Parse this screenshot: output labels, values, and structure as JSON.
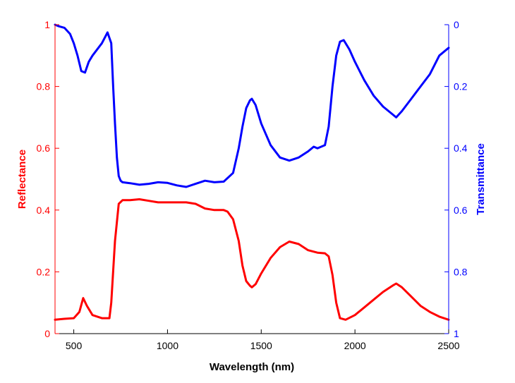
{
  "chart_data": {
    "type": "line",
    "xlabel": "Wavelength (nm)",
    "ylabel_left": "Reflectance",
    "ylabel_right": "Transmittance",
    "xlim": [
      400,
      2500
    ],
    "ylim_left": [
      0,
      1
    ],
    "ylim_right": [
      0,
      1
    ],
    "right_axis_inverted": true,
    "grid": false,
    "x_ticks": [
      500,
      1000,
      1500,
      2000,
      2500
    ],
    "x_tick_labels": [
      "500",
      "1000",
      "1500",
      "2000",
      "2500"
    ],
    "y_left_ticks": [
      0,
      0.2,
      0.4,
      0.6,
      0.8,
      1
    ],
    "y_left_tick_labels": [
      "0",
      "0.2",
      "0.4",
      "0.6",
      "0.8",
      "1"
    ],
    "y_right_ticks": [
      0,
      0.2,
      0.4,
      0.6,
      0.8,
      1
    ],
    "y_right_tick_labels": [
      "0",
      "0.2",
      "0.4",
      "0.6",
      "0.8",
      "1"
    ],
    "colors": {
      "reflectance": "#ff0000",
      "transmittance": "#0000ff",
      "axes": "#000000"
    },
    "series": [
      {
        "axis": "left",
        "color": "#ff0000",
        "x": [
          400,
          450,
          500,
          530,
          550,
          570,
          600,
          650,
          690,
          700,
          720,
          740,
          760,
          800,
          850,
          900,
          950,
          1000,
          1050,
          1100,
          1150,
          1200,
          1250,
          1300,
          1320,
          1350,
          1380,
          1400,
          1420,
          1440,
          1450,
          1470,
          1500,
          1550,
          1600,
          1650,
          1700,
          1750,
          1800,
          1840,
          1860,
          1880,
          1900,
          1920,
          1950,
          2000,
          2050,
          2100,
          2150,
          2200,
          2220,
          2250,
          2300,
          2350,
          2400,
          2450,
          2500
        ],
        "y": [
          0.045,
          0.048,
          0.05,
          0.07,
          0.115,
          0.09,
          0.06,
          0.05,
          0.05,
          0.1,
          0.3,
          0.42,
          0.432,
          0.432,
          0.435,
          0.43,
          0.425,
          0.425,
          0.425,
          0.425,
          0.42,
          0.405,
          0.4,
          0.4,
          0.395,
          0.37,
          0.3,
          0.22,
          0.17,
          0.155,
          0.15,
          0.16,
          0.195,
          0.245,
          0.28,
          0.298,
          0.29,
          0.27,
          0.262,
          0.26,
          0.25,
          0.19,
          0.1,
          0.05,
          0.045,
          0.06,
          0.085,
          0.11,
          0.135,
          0.155,
          0.162,
          0.15,
          0.12,
          0.09,
          0.07,
          0.055,
          0.045
        ]
      },
      {
        "axis": "right",
        "color": "#0000ff",
        "x": [
          400,
          420,
          450,
          480,
          500,
          520,
          540,
          560,
          580,
          600,
          650,
          680,
          700,
          710,
          720,
          730,
          740,
          750,
          760,
          800,
          850,
          900,
          950,
          1000,
          1050,
          1100,
          1150,
          1200,
          1250,
          1300,
          1350,
          1380,
          1400,
          1420,
          1440,
          1450,
          1470,
          1500,
          1550,
          1600,
          1650,
          1700,
          1750,
          1780,
          1800,
          1840,
          1860,
          1880,
          1900,
          1920,
          1940,
          1950,
          1970,
          2000,
          2050,
          2100,
          2150,
          2200,
          2220,
          2250,
          2300,
          2350,
          2400,
          2450,
          2500
        ],
        "y": [
          0.0,
          0.005,
          0.01,
          0.03,
          0.06,
          0.1,
          0.15,
          0.155,
          0.12,
          0.1,
          0.06,
          0.025,
          0.06,
          0.2,
          0.32,
          0.43,
          0.49,
          0.505,
          0.51,
          0.513,
          0.518,
          0.515,
          0.51,
          0.512,
          0.52,
          0.525,
          0.515,
          0.505,
          0.51,
          0.508,
          0.48,
          0.4,
          0.33,
          0.27,
          0.245,
          0.24,
          0.26,
          0.32,
          0.39,
          0.43,
          0.44,
          0.43,
          0.41,
          0.395,
          0.4,
          0.39,
          0.33,
          0.2,
          0.1,
          0.055,
          0.05,
          0.06,
          0.08,
          0.12,
          0.18,
          0.23,
          0.265,
          0.29,
          0.3,
          0.28,
          0.24,
          0.2,
          0.16,
          0.1,
          0.075
        ]
      }
    ]
  }
}
